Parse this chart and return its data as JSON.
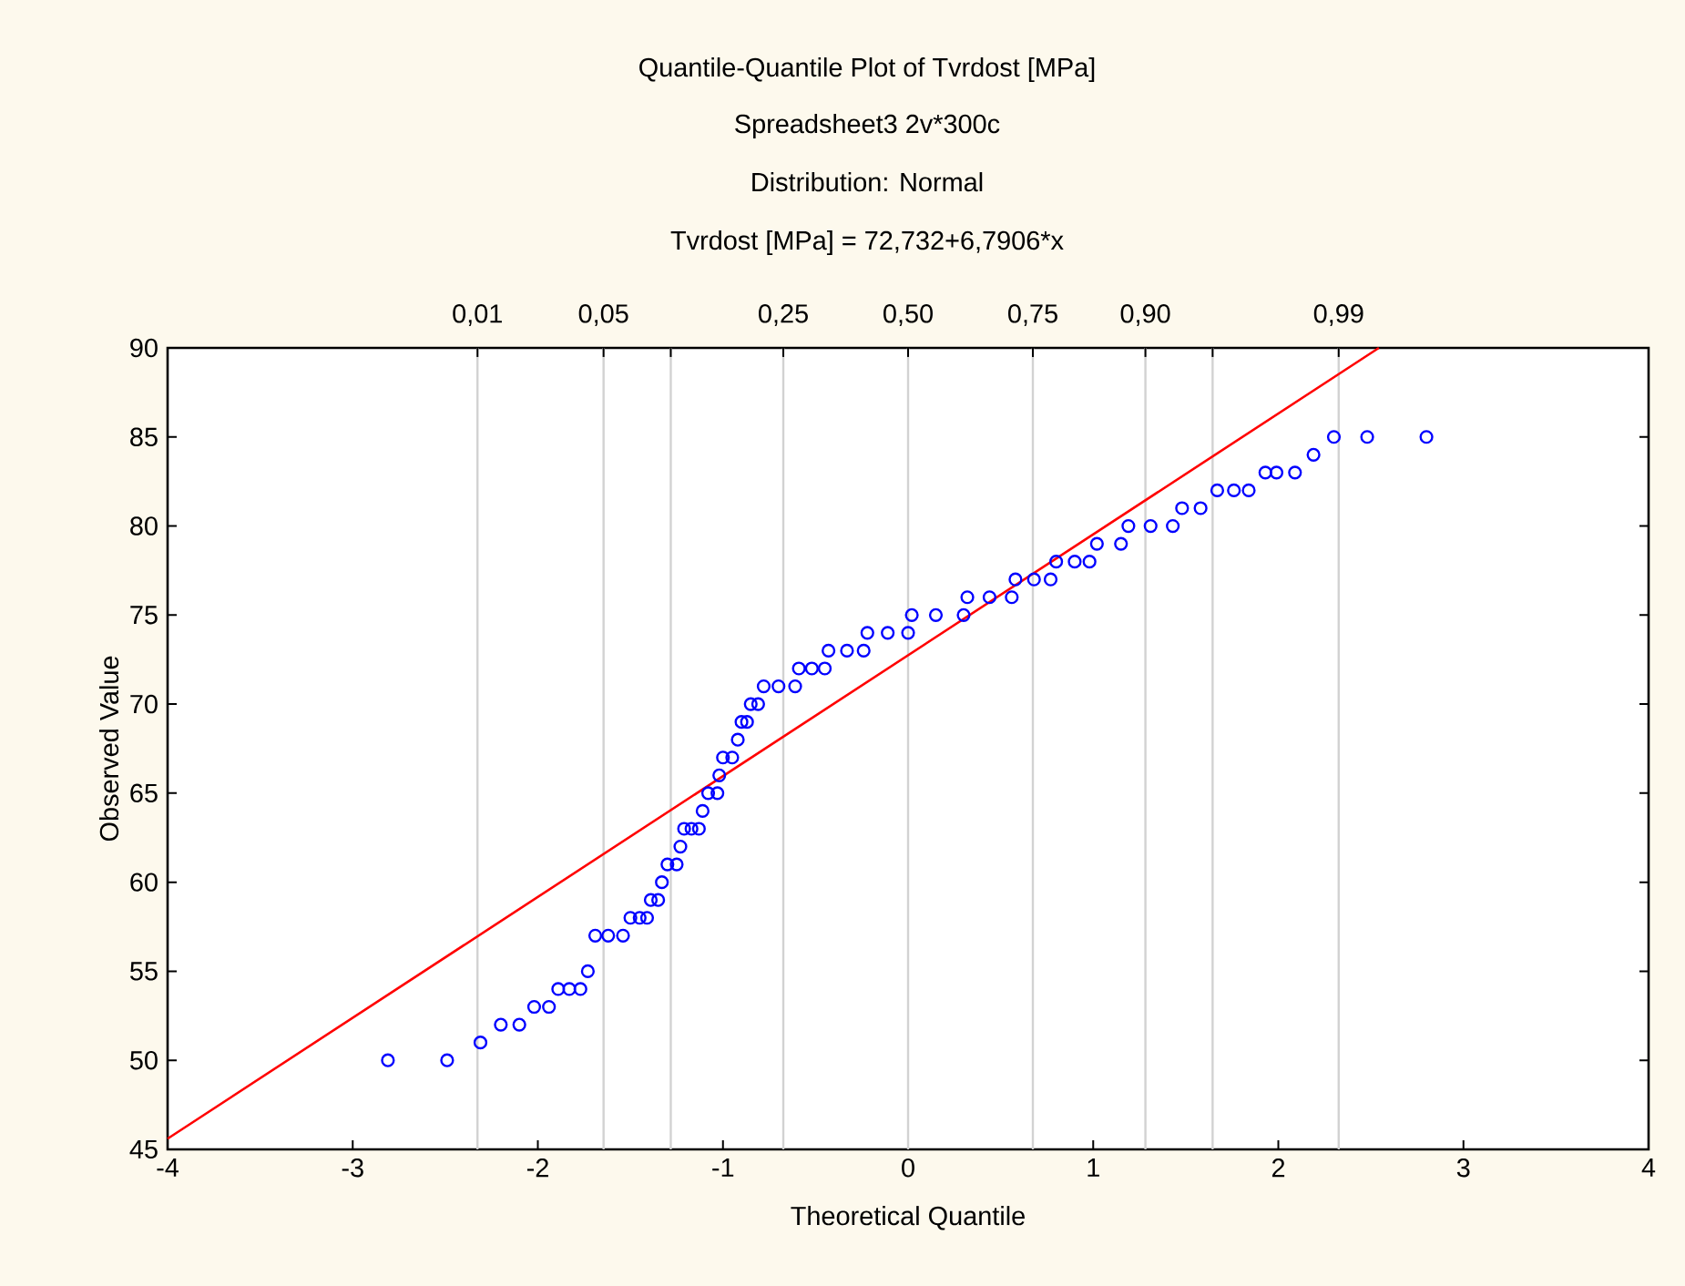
{
  "chart_data": {
    "type": "scatter",
    "title": "Quantile-Quantile Plot of Tvrdost [MPa]",
    "subtitle": "Spreadsheet3 2v*300c",
    "annotations": [
      "Distribution: Normal",
      "Tvrdost [MPa] = 72,732+6,7906*x",
      {
        "text": "0,01",
        "x": -2.326,
        "y": 90
      },
      {
        "text": "0,05",
        "x": -1.645,
        "y": 90
      },
      {
        "text": "0,25",
        "x": -0.674,
        "y": 90
      },
      {
        "text": "0,50",
        "x": 0,
        "y": 90
      },
      {
        "text": "0,75",
        "x": 0.674,
        "y": 90
      },
      {
        "text": "0,90",
        "x": 1.282,
        "y": 90
      },
      {
        "text": "0,99",
        "x": 2.326,
        "y": 90
      }
    ],
    "xlabel": "Theoretical Quantile",
    "ylabel": "Observed Value",
    "xlim": [
      -4,
      4
    ],
    "ylim": [
      45,
      90
    ],
    "xticks": [
      -4,
      -3,
      -2,
      -1,
      0,
      1,
      2,
      3,
      4
    ],
    "yticks": [
      45,
      50,
      55,
      60,
      65,
      70,
      75,
      80,
      85,
      90
    ],
    "ref_lines": [
      {
        "axis": "x",
        "value": -2.326,
        "color": "#d2d2d2"
      },
      {
        "axis": "x",
        "value": -1.645,
        "color": "#d2d2d2"
      },
      {
        "axis": "x",
        "value": -1.282,
        "color": "#d2d2d2"
      },
      {
        "axis": "x",
        "value": -0.674,
        "color": "#d2d2d2"
      },
      {
        "axis": "x",
        "value": 0,
        "color": "#d2d2d2"
      },
      {
        "axis": "x",
        "value": 0.674,
        "color": "#d2d2d2"
      },
      {
        "axis": "x",
        "value": 1.282,
        "color": "#d2d2d2"
      },
      {
        "axis": "x",
        "value": 1.645,
        "color": "#d2d2d2"
      },
      {
        "axis": "x",
        "value": 2.326,
        "color": "#d2d2d2"
      }
    ],
    "marker": "circle",
    "series": [
      {
        "color": "#0000ff",
        "x": [
          -2.81,
          -2.49,
          -2.31,
          -2.2,
          -2.1,
          -2.02,
          -1.94,
          -1.89,
          -1.83,
          -1.77,
          -1.73,
          -1.69,
          -1.62,
          -1.54,
          -1.5,
          -1.45,
          -1.41,
          -1.39,
          -1.35,
          -1.33,
          -1.3,
          -1.25,
          -1.23,
          -1.21,
          -1.17,
          -1.13,
          -1.11,
          -1.08,
          -1.03,
          -1.02,
          -1.0,
          -0.95,
          -0.92,
          -0.9,
          -0.87,
          -0.85,
          -0.81,
          -0.78,
          -0.7,
          -0.61,
          -0.59,
          -0.52,
          -0.45,
          -0.43,
          -0.33,
          -0.24,
          -0.22,
          -0.11,
          0.0,
          0.02,
          0.15,
          0.3,
          0.32,
          0.44,
          0.56,
          0.58,
          0.68,
          0.77,
          0.8,
          0.9,
          0.98,
          1.02,
          1.15,
          1.19,
          1.31,
          1.43,
          1.48,
          1.58,
          1.67,
          1.76,
          1.84,
          1.93,
          1.99,
          2.09,
          2.19,
          2.3,
          2.48,
          2.8
        ],
        "values": [
          50,
          50,
          51,
          52,
          52,
          53,
          53,
          54,
          54,
          54,
          55,
          57,
          57,
          57,
          58,
          58,
          58,
          59,
          59,
          60,
          61,
          61,
          62,
          63,
          63,
          63,
          64,
          65,
          65,
          66,
          67,
          67,
          68,
          69,
          69,
          70,
          70,
          71,
          71,
          71,
          72,
          72,
          72,
          73,
          73,
          73,
          74,
          74,
          74,
          75,
          75,
          75,
          76,
          76,
          76,
          77,
          77,
          77,
          78,
          78,
          78,
          79,
          79,
          80,
          80,
          80,
          81,
          81,
          82,
          82,
          82,
          83,
          83,
          83,
          84,
          85,
          85,
          85
        ]
      },
      {
        "type": "line",
        "color": "#ff0000",
        "marker": "none",
        "x": [
          -4,
          2.543
        ],
        "values": [
          45.6,
          90
        ]
      }
    ]
  }
}
